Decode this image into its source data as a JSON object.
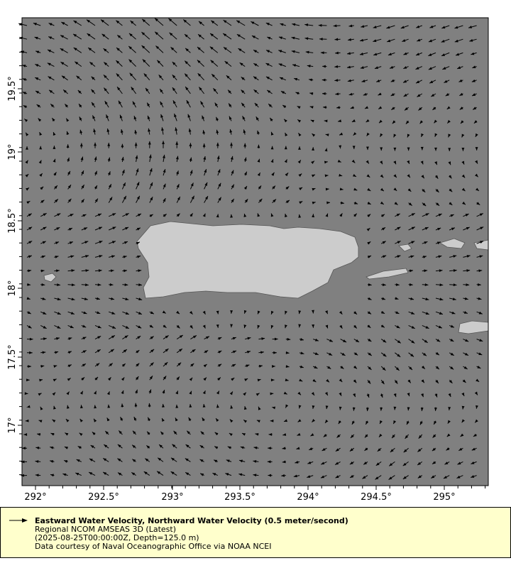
{
  "map": {
    "x_ticks": [
      "292°",
      "292.5°",
      "293°",
      "293.5°",
      "294°",
      "294.5°",
      "295°"
    ],
    "y_ticks": [
      "19.5°",
      "19°",
      "18.5°",
      "18°",
      "17.5°",
      "17°"
    ],
    "ocean_color": "#808080",
    "land_color": "#cccccc",
    "vector_color": "#000000"
  },
  "legend": {
    "title": "Eastward Water Velocity, Northward Water Velocity (0.5 meter/second)",
    "dataset": "Regional NCOM AMSEAS 3D (Latest)",
    "constraints": "(2025-08-25T00:00:00Z, Depth=125.0 m)",
    "credit": "Data courtesy of Naval Oceanographic Office via NOAA NCEI",
    "icon": "arrow-icon"
  }
}
